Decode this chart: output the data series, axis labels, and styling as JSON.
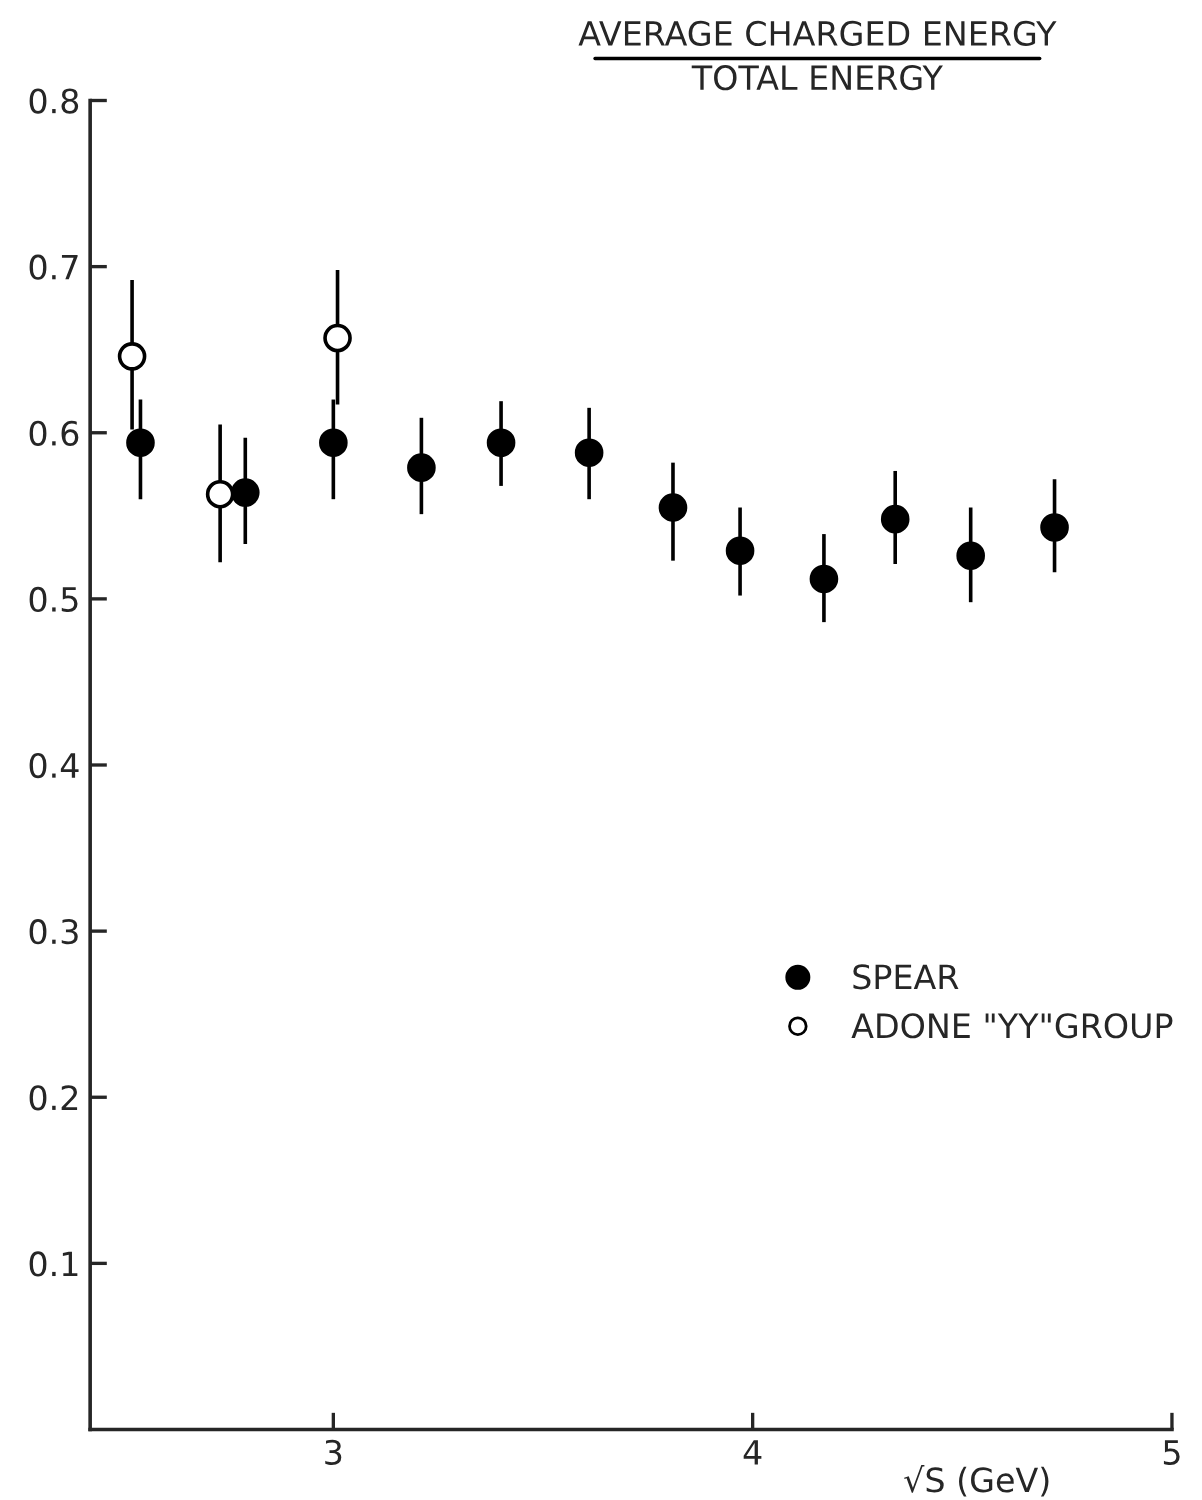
{
  "chart_data": {
    "type": "scatter",
    "title": "AVERAGE CHARGED ENERGY",
    "subtitle": "TOTAL ENERGY",
    "xlabel": "√S (GeV)",
    "xlim": [
      2.42,
      5
    ],
    "xticks": [
      3,
      4,
      5
    ],
    "ylim": [
      0,
      0.8
    ],
    "yticks": [
      0.1,
      0.2,
      0.3,
      0.4,
      0.5,
      0.6,
      0.7,
      0.8
    ],
    "grid": false,
    "legend": "right",
    "marker": "circle",
    "series": [
      {
        "name": "SPEAR",
        "color": "#000000",
        "x": [
          2.54,
          2.79,
          3.0,
          3.21,
          3.4,
          3.61,
          3.81,
          3.97,
          4.17,
          4.34,
          4.52,
          4.72
        ],
        "values": [
          0.594,
          0.564,
          0.594,
          0.579,
          0.594,
          0.588,
          0.555,
          0.529,
          0.512,
          0.548,
          0.526,
          0.543
        ],
        "errors": [
          [
            0.56,
            0.62
          ],
          [
            0.533,
            0.597
          ],
          [
            0.56,
            0.62
          ],
          [
            0.551,
            0.609
          ],
          [
            0.568,
            0.619
          ],
          [
            0.56,
            0.615
          ],
          [
            0.523,
            0.582
          ],
          [
            0.502,
            0.555
          ],
          [
            0.486,
            0.539
          ],
          [
            0.521,
            0.577
          ],
          [
            0.498,
            0.555
          ],
          [
            0.516,
            0.572
          ]
        ]
      },
      {
        "name": "ADONE \"YY\"GROUP",
        "color": "#ffffff",
        "x": [
          2.52,
          2.73,
          3.01
        ],
        "values": [
          0.646,
          0.563,
          0.657
        ],
        "errors": [
          [
            0.602,
            0.692
          ],
          [
            0.522,
            0.605
          ],
          [
            0.617,
            0.698
          ]
        ]
      }
    ]
  }
}
